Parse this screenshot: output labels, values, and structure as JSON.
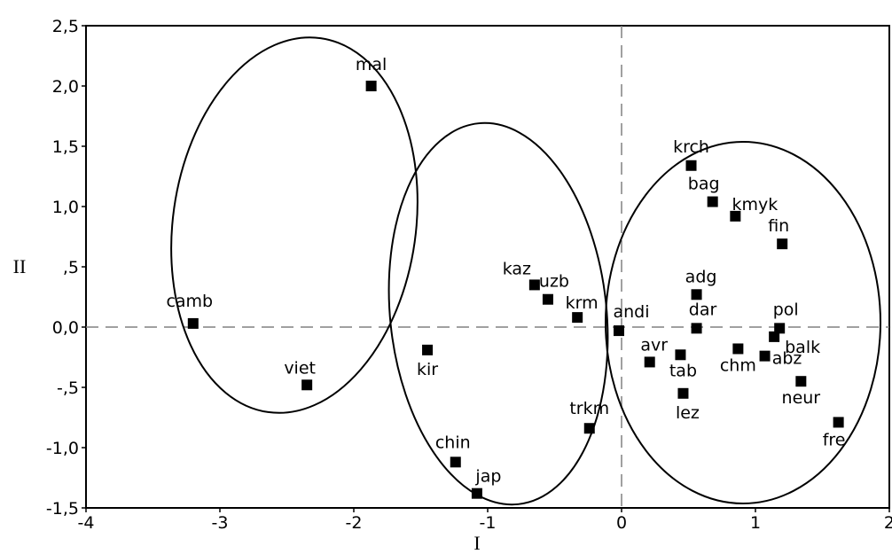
{
  "chart_data": {
    "type": "scatter",
    "title": "",
    "xlabel": "I",
    "ylabel": "II",
    "xlim": [
      -4,
      2
    ],
    "ylim": [
      -1.5,
      2.5
    ],
    "x_ticks": [
      {
        "value": -4,
        "label": "-4"
      },
      {
        "value": -3,
        "label": "-3"
      },
      {
        "value": -2,
        "label": "-2"
      },
      {
        "value": -1,
        "label": "-1"
      },
      {
        "value": 0,
        "label": "0"
      },
      {
        "value": 1,
        "label": "1"
      },
      {
        "value": 2,
        "label": "2"
      }
    ],
    "y_ticks": [
      {
        "value": 2.5,
        "label": "2,5"
      },
      {
        "value": 2.0,
        "label": "2,0"
      },
      {
        "value": 1.5,
        "label": "1,5"
      },
      {
        "value": 1.0,
        "label": "1,0"
      },
      {
        "value": 0.5,
        "label": ",5"
      },
      {
        "value": 0.0,
        "label": "0,0"
      },
      {
        "value": -0.5,
        "label": "-,5"
      },
      {
        "value": -1.0,
        "label": "-1,0"
      },
      {
        "value": -1.5,
        "label": "-1,5"
      }
    ],
    "reference_lines": {
      "x": 0,
      "y": 0,
      "style": "dashed"
    },
    "grid": false,
    "points": [
      {
        "label": "mal",
        "x": -1.87,
        "y": 2.0
      },
      {
        "label": "camb",
        "x": -3.2,
        "y": 0.03
      },
      {
        "label": "viet",
        "x": -2.35,
        "y": -0.48
      },
      {
        "label": "kir",
        "x": -1.45,
        "y": -0.19
      },
      {
        "label": "kaz",
        "x": -0.65,
        "y": 0.35
      },
      {
        "label": "uzb",
        "x": -0.55,
        "y": 0.23
      },
      {
        "label": "krm",
        "x": -0.33,
        "y": 0.08
      },
      {
        "label": "andi",
        "x": -0.02,
        "y": -0.03
      },
      {
        "label": "trkm",
        "x": -0.24,
        "y": -0.84
      },
      {
        "label": "chin",
        "x": -1.24,
        "y": -1.12
      },
      {
        "label": "jap",
        "x": -1.08,
        "y": -1.38
      },
      {
        "label": "krch",
        "x": 0.52,
        "y": 1.34
      },
      {
        "label": "bag",
        "x": 0.68,
        "y": 1.04
      },
      {
        "label": "kmyk",
        "x": 0.85,
        "y": 0.92
      },
      {
        "label": "fin",
        "x": 1.2,
        "y": 0.69
      },
      {
        "label": "adg",
        "x": 0.56,
        "y": 0.27
      },
      {
        "label": "dar",
        "x": 0.56,
        "y": -0.01
      },
      {
        "label": "pol",
        "x": 1.18,
        "y": -0.01
      },
      {
        "label": "avr",
        "x": 0.21,
        "y": -0.29
      },
      {
        "label": "tab",
        "x": 0.44,
        "y": -0.23
      },
      {
        "label": "chm",
        "x": 0.87,
        "y": -0.18
      },
      {
        "label": "balk",
        "x": 1.14,
        "y": -0.08
      },
      {
        "label": "abz",
        "x": 1.07,
        "y": -0.24
      },
      {
        "label": "neur",
        "x": 1.34,
        "y": -0.45
      },
      {
        "label": "lez",
        "x": 0.46,
        "y": -0.55
      },
      {
        "label": "fre",
        "x": 1.62,
        "y": -0.79
      }
    ]
  }
}
